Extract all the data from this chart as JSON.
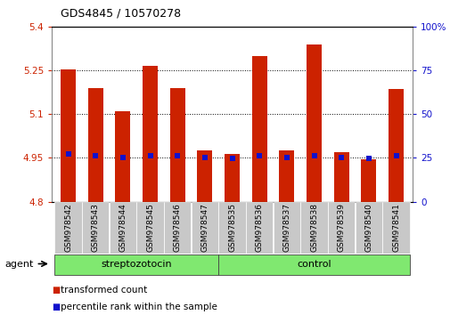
{
  "title": "GDS4845 / 10570278",
  "samples": [
    "GSM978542",
    "GSM978543",
    "GSM978544",
    "GSM978545",
    "GSM978546",
    "GSM978547",
    "GSM978535",
    "GSM978536",
    "GSM978537",
    "GSM978538",
    "GSM978539",
    "GSM978540",
    "GSM978541"
  ],
  "bar_tops": [
    5.255,
    5.19,
    5.11,
    5.265,
    5.19,
    4.975,
    4.965,
    5.3,
    4.975,
    5.34,
    4.97,
    4.945,
    5.185
  ],
  "bar_bottoms": [
    4.8,
    4.8,
    4.8,
    4.8,
    4.8,
    4.8,
    4.8,
    4.8,
    4.8,
    4.8,
    4.8,
    4.8,
    4.8
  ],
  "percentile_values": [
    4.963,
    4.958,
    4.952,
    4.958,
    4.958,
    4.951,
    4.948,
    4.958,
    4.951,
    4.958,
    4.951,
    4.948,
    4.958
  ],
  "groups": [
    {
      "label": "streptozotocin",
      "start": 0,
      "end": 6
    },
    {
      "label": "control",
      "start": 6,
      "end": 13
    }
  ],
  "ylim_left": [
    4.8,
    5.4
  ],
  "ylim_right": [
    0,
    100
  ],
  "bar_color": "#CC2200",
  "percentile_color": "#1111CC",
  "grid_color": "#000000",
  "yticks_left": [
    4.8,
    4.95,
    5.1,
    5.25,
    5.4
  ],
  "yticks_right": [
    0,
    25,
    50,
    75,
    100
  ],
  "ylabel_left_color": "#CC2200",
  "ylabel_right_color": "#1111CC",
  "legend_labels": [
    "transformed count",
    "percentile rank within the sample"
  ],
  "agent_label": "agent",
  "group_band_color": "#80E870",
  "tick_cell_color": "#C8C8C8",
  "bar_width": 0.55
}
